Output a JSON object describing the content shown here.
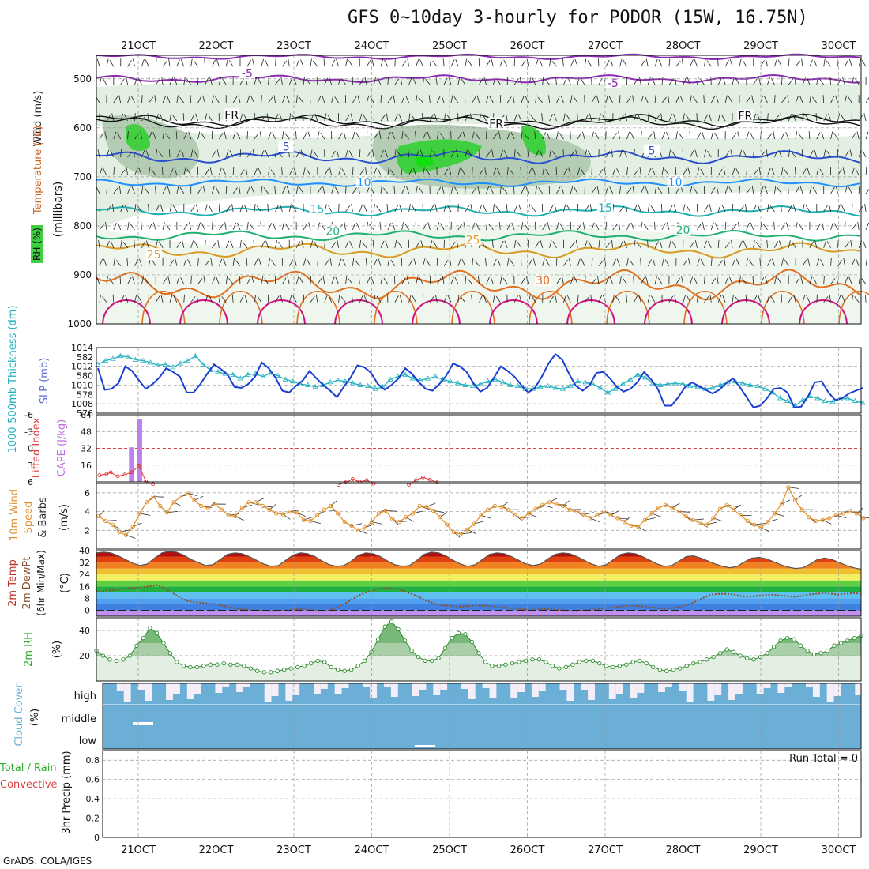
{
  "title": "GFS 0~10day 3-hourly for PODOR (15W, 16.75N)",
  "credit": "GrADS: COLA/IGES",
  "chart_data": [
    {
      "type": "contour",
      "panel": "upper-air",
      "ylabel_parts": [
        {
          "text": "Wind (m/s)",
          "color": "#222222"
        },
        {
          "text": "Temperature (°C)",
          "color": "#d06020"
        },
        {
          "text": "RH (%)",
          "color": "#2fae2f"
        }
      ],
      "ylabel2": "(millibars)",
      "y_ticks": [
        "500",
        "600",
        "700",
        "800",
        "900",
        "1000"
      ],
      "contour_labels": [
        {
          "text": "-5",
          "color": "#8a2bb0",
          "p": 490,
          "d": 1.4
        },
        {
          "text": "-5",
          "color": "#8a2bb0",
          "p": 510,
          "d": 6.1
        },
        {
          "text": "FR",
          "color": "#111111",
          "p": 575,
          "d": 1.2
        },
        {
          "text": "FR",
          "color": "#111111",
          "p": 593,
          "d": 4.6
        },
        {
          "text": "FR",
          "color": "#111111",
          "p": 577,
          "d": 7.8
        },
        {
          "text": "5",
          "color": "#2a4fd0",
          "p": 640,
          "d": 1.9
        },
        {
          "text": "5",
          "color": "#2a4fd0",
          "p": 648,
          "d": 6.6
        },
        {
          "text": "10",
          "color": "#1e90ff",
          "p": 712,
          "d": 2.9
        },
        {
          "text": "10",
          "color": "#1e90ff",
          "p": 712,
          "d": 6.9
        },
        {
          "text": "15",
          "color": "#20b0b0",
          "p": 767,
          "d": 2.3
        },
        {
          "text": "15",
          "color": "#20b0b0",
          "p": 765,
          "d": 6.0
        },
        {
          "text": "20",
          "color": "#20b070",
          "p": 812,
          "d": 2.5
        },
        {
          "text": "20",
          "color": "#20b070",
          "p": 810,
          "d": 7.0
        },
        {
          "text": "25",
          "color": "#d89a20",
          "p": 860,
          "d": 0.2
        },
        {
          "text": "25",
          "color": "#d89a20",
          "p": 830,
          "d": 4.3
        },
        {
          "text": "30",
          "color": "#e07020",
          "p": 913,
          "d": 5.2
        }
      ]
    },
    {
      "type": "line",
      "panel": "thickness-slp",
      "ylabel_left": "1000-500mb Thickness (dm)",
      "ylabel_right": "SLP (mb)",
      "y_ticks": [
        "582",
        "580",
        "578",
        "576"
      ],
      "y2_ticks": [
        "1014",
        "1012",
        "1010",
        "1008"
      ],
      "ylim": [
        576,
        583
      ],
      "y2lim": [
        1007,
        1014
      ],
      "series": [
        {
          "name": "1000-500mb Thickness",
          "color": "#20b0c0",
          "values": [
            581.2,
            581.6,
            581.8,
            582.1,
            582.0,
            581.7,
            581.6,
            581.4,
            581.1,
            581.2,
            580.9,
            581.3,
            581.6,
            582.1,
            581.2,
            580.6,
            580.4,
            580.2,
            580.1,
            579.7,
            580.1,
            580.2,
            579.9,
            580.3,
            580.0,
            579.6,
            579.4,
            579.1,
            579.0,
            578.8,
            579.0,
            579.3,
            579.5,
            579.4,
            579.2,
            579.0,
            578.9,
            578.6,
            578.8,
            579.6,
            579.9,
            580.1,
            579.7,
            579.5,
            579.7,
            579.9,
            579.6,
            579.4,
            579.2,
            579.0,
            578.9,
            579.1,
            579.4,
            579.6,
            579.3,
            579.0,
            578.9,
            578.6,
            578.6,
            578.8,
            578.9,
            578.7,
            578.6,
            578.9,
            579.4,
            579.3,
            579.1,
            578.7,
            578.2,
            578.6,
            579.1,
            579.6,
            580.1,
            579.8,
            579.2,
            579.0,
            579.1,
            579.2,
            579.1,
            578.9,
            578.8,
            578.6,
            578.7,
            579.0,
            579.3,
            579.4,
            579.2,
            579.0,
            578.9,
            578.6,
            578.2,
            577.6,
            577.3,
            576.8,
            577.4,
            577.8,
            577.6,
            577.3,
            577.2,
            577.5,
            577.6,
            577.3,
            577.1
          ]
        },
        {
          "name": "SLP",
          "color": "#1a3fd0",
          "values": [
            1011.8,
            1009.5,
            1009.6,
            1010.2,
            1012.0,
            1011.5,
            1010.5,
            1009.6,
            1010.1,
            1010.8,
            1011.8,
            1011.4,
            1010.9,
            1009.2,
            1009.2,
            1010.1,
            1011.2,
            1012.2,
            1011.7,
            1011.1,
            1009.8,
            1009.7,
            1010.1,
            1010.9,
            1012.4,
            1011.8,
            1010.8,
            1009.4,
            1009.2,
            1009.9,
            1010.5,
            1011.5,
            1010.7,
            1010.0,
            1009.4,
            1008.7,
            1009.8,
            1010.8,
            1012.1,
            1011.9,
            1011.3,
            1010.1,
            1009.5,
            1010.0,
            1010.7,
            1011.8,
            1011.2,
            1010.3,
            1009.6,
            1009.4,
            1010.1,
            1011.0,
            1012.3,
            1012.0,
            1011.4,
            1010.2,
            1009.3,
            1009.7,
            1010.8,
            1012.0,
            1011.5,
            1010.9,
            1010.0,
            1009.2,
            1009.7,
            1010.9,
            1012.3,
            1013.3,
            1012.7,
            1011.2,
            1009.9,
            1009.4,
            1010.0,
            1011.3,
            1011.4,
            1010.7,
            1009.8,
            1009.3,
            1009.6,
            1010.3,
            1011.4,
            1010.6,
            1009.6,
            1007.8,
            1007.8,
            1008.7,
            1009.8,
            1010.3,
            1009.9,
            1009.5,
            1009.1,
            1009.5,
            1010.2,
            1010.7,
            1009.8,
            1008.7,
            1007.6,
            1007.8,
            1008.6,
            1009.6,
            1009.7,
            1009.2,
            1007.6,
            1007.7,
            1008.8,
            1010.3,
            1010.4,
            1009.2,
            1008.4,
            1008.6,
            1009.1,
            1009.4,
            1009.7
          ]
        }
      ]
    },
    {
      "type": "bar+line",
      "panel": "instability",
      "ylabel_left": "Lifted Index",
      "ylabel_right": "CAPE (J/kg)",
      "y_ticks": [
        "-6",
        "-3",
        "0",
        "3",
        "6"
      ],
      "y2_ticks": [
        "64",
        "48",
        "32",
        "16"
      ],
      "y2lim": [
        0,
        64
      ],
      "cape_bars": [
        {
          "x": 4.3,
          "value": 33
        },
        {
          "x": 5.5,
          "value": 60
        }
      ],
      "lifted_index_segments": [
        [
          [
            0,
            4.8
          ],
          [
            1,
            4.6
          ],
          [
            1.6,
            4.3
          ],
          [
            2.6,
            5.0
          ],
          [
            3.6,
            4.7
          ],
          [
            4.6,
            4.3
          ],
          [
            5.6,
            3.1
          ],
          [
            6.6,
            5.9
          ],
          [
            7.6,
            6.4
          ]
        ],
        [
          [
            34,
            6.5
          ],
          [
            35,
            6.1
          ],
          [
            36,
            5.5
          ],
          [
            37,
            6.0
          ],
          [
            38,
            5.7
          ],
          [
            39,
            6.3
          ]
        ],
        [
          [
            44,
            6.5
          ],
          [
            45,
            5.7
          ],
          [
            46,
            5.2
          ],
          [
            47,
            5.6
          ],
          [
            48,
            6.1
          ]
        ]
      ]
    },
    {
      "type": "line",
      "panel": "wind10m",
      "ylabel": "10m Wind Speed & Barbs (m/s)",
      "y_ticks": [
        "6",
        "4",
        "2"
      ],
      "ylim": [
        0,
        7
      ],
      "series": [
        {
          "name": "10m Wind Speed",
          "color": "#e0902a",
          "values": [
            3.5,
            3.0,
            2.6,
            1.8,
            1.5,
            2.4,
            3.8,
            5.0,
            5.6,
            4.6,
            3.9,
            5.0,
            5.6,
            6.0,
            5.2,
            4.6,
            4.4,
            4.8,
            4.2,
            3.6,
            3.5,
            4.4,
            5.0,
            5.0,
            4.6,
            4.2,
            3.8,
            3.7,
            4.0,
            3.9,
            3.1,
            3.0,
            3.6,
            4.2,
            4.6,
            3.8,
            2.9,
            2.5,
            2.0,
            2.3,
            2.9,
            3.8,
            4.1,
            3.2,
            2.9,
            3.4,
            3.8,
            4.6,
            4.5,
            4.1,
            3.4,
            2.6,
            1.8,
            1.6,
            2.1,
            2.7,
            3.6,
            4.2,
            4.6,
            4.5,
            4.2,
            3.6,
            3.3,
            3.8,
            4.3,
            4.7,
            5.0,
            4.8,
            4.6,
            4.2,
            4.0,
            3.7,
            3.3,
            3.6,
            4.0,
            3.6,
            3.3,
            2.9,
            2.5,
            2.4,
            3.1,
            3.8,
            4.4,
            4.7,
            4.4,
            4.0,
            3.5,
            3.1,
            2.8,
            2.6,
            3.3,
            4.3,
            4.7,
            4.2,
            3.6,
            3.0,
            2.6,
            2.3,
            2.9,
            3.8,
            4.8,
            6.6,
            5.2,
            4.2,
            3.4,
            3.0,
            3.1,
            3.3,
            3.6,
            3.8,
            4.0,
            3.8,
            3.3
          ]
        }
      ]
    },
    {
      "type": "area+line",
      "panel": "temperature",
      "ylabel": "2m Temp 2m DewPt (6hr Min/Max) (°C)",
      "y_ticks": [
        "40",
        "32",
        "24",
        "16",
        "8",
        "0"
      ],
      "ylim": [
        -4,
        40
      ],
      "series": [
        {
          "name": "2m Temp",
          "color": "#555555",
          "values": [
            38.5,
            39.0,
            38.5,
            36.5,
            34.0,
            31.5,
            30.0,
            31.0,
            35.0,
            38.5,
            39.5,
            39.0,
            37.0,
            34.0,
            32.0,
            30.0,
            30.5,
            34.0,
            37.5,
            38.5,
            38.0,
            36.0,
            33.5,
            31.0,
            29.5,
            30.0,
            33.5,
            37.0,
            38.5,
            38.0,
            36.0,
            33.0,
            30.5,
            29.5,
            30.0,
            33.0,
            37.0,
            38.5,
            38.0,
            36.0,
            33.0,
            30.5,
            29.5,
            30.0,
            33.5,
            37.5,
            39.0,
            38.5,
            36.5,
            33.5,
            31.0,
            29.5,
            30.5,
            34.0,
            37.5,
            38.5,
            38.0,
            36.0,
            33.5,
            31.0,
            30.0,
            31.0,
            34.5,
            37.5,
            38.5,
            38.0,
            36.0,
            33.5,
            31.0,
            29.5,
            30.5,
            34.0,
            37.5,
            38.5,
            38.0,
            36.0,
            33.5,
            31.0,
            29.5,
            30.0,
            33.0,
            36.0,
            36.5,
            35.0,
            33.0,
            31.0,
            29.5,
            28.5,
            29.5,
            32.5,
            35.0,
            35.5,
            34.5,
            32.5,
            30.5,
            29.0,
            28.0,
            28.5,
            31.0,
            34.0,
            35.0,
            34.0,
            32.0,
            30.0,
            28.5,
            27.5
          ]
        },
        {
          "name": "2m DewPt",
          "color": "#8a5030",
          "values": [
            12.5,
            13.0,
            13.5,
            14.0,
            14.5,
            15.0,
            15.5,
            16.0,
            17.0,
            15.0,
            12.0,
            9.0,
            6.5,
            5.5,
            5.0,
            4.5,
            4.0,
            3.0,
            2.0,
            1.0,
            0.5,
            0.0,
            -0.3,
            -0.5,
            -0.5,
            -0.2,
            0.5,
            1.0,
            0.5,
            0.0,
            -0.5,
            0.0,
            2.0,
            4.0,
            7.0,
            10.0,
            12.0,
            13.5,
            14.5,
            15.0,
            14.5,
            13.0,
            11.0,
            9.0,
            6.5,
            4.5,
            3.5,
            3.0,
            2.5,
            2.5,
            3.0,
            3.2,
            3.0,
            2.5,
            2.0,
            1.5,
            1.0,
            0.5,
            0.5,
            1.0,
            1.0,
            0.5,
            0.0,
            -0.5,
            -0.5,
            0.0,
            0.5,
            1.0,
            1.5,
            2.0,
            2.5,
            3.0,
            3.0,
            2.5,
            2.0,
            1.5,
            1.0,
            1.5,
            2.5,
            4.0,
            6.0,
            8.5,
            10.5,
            11.0,
            11.0,
            10.5,
            9.5,
            9.0,
            9.5,
            10.0,
            10.5,
            10.0,
            9.5,
            9.0,
            9.5,
            10.5,
            11.0,
            11.5,
            11.0,
            10.5,
            11.0,
            11.5,
            11.0
          ]
        }
      ]
    },
    {
      "type": "area+line",
      "panel": "rh2m",
      "ylabel": "2m RH (%)",
      "y_ticks": [
        "40",
        "20"
      ],
      "ylim": [
        0,
        50
      ],
      "series": [
        {
          "name": "2m RH",
          "color": "#2e8b2e",
          "values": [
            24,
            20,
            17,
            16,
            17,
            20,
            28,
            34,
            42,
            38,
            30,
            22,
            15,
            12,
            11,
            11,
            12,
            13,
            13,
            14,
            13,
            13,
            12,
            10,
            8,
            7,
            7,
            8,
            9,
            10,
            11,
            12,
            14,
            16,
            15,
            11,
            9,
            8,
            9,
            12,
            16,
            23,
            33,
            43,
            47,
            41,
            32,
            24,
            19,
            16,
            16,
            18,
            26,
            34,
            38,
            37,
            31,
            22,
            15,
            12,
            12,
            13,
            14,
            15,
            16,
            17,
            17,
            15,
            12,
            10,
            11,
            13,
            15,
            16,
            16,
            14,
            12,
            11,
            12,
            13,
            15,
            16,
            14,
            11,
            9,
            8,
            9,
            10,
            12,
            14,
            15,
            17,
            19,
            22,
            25,
            23,
            20,
            18,
            17,
            19,
            22,
            27,
            32,
            34,
            33,
            28,
            24,
            21,
            22,
            24,
            28,
            30,
            32,
            34,
            36
          ]
        }
      ]
    },
    {
      "type": "area",
      "panel": "cloud-cover",
      "ylabel": "Cloud Cover (%)",
      "levels": [
        "high",
        "middle",
        "low"
      ]
    },
    {
      "type": "bar",
      "panel": "precip",
      "ylabel": "3hr Precip (mm)",
      "side_labels": [
        "Total / Rain",
        "Convective"
      ],
      "y_ticks": [
        "0.8",
        "0.6",
        "0.4",
        "0.2",
        "0"
      ],
      "ylim": [
        0,
        0.9
      ],
      "annotation": "Run Total = 0",
      "values": []
    }
  ],
  "x_axis": {
    "top_ticks": [
      "21OCT",
      "22OCT",
      "23OCT",
      "24OCT",
      "25OCT",
      "26OCT",
      "27OCT",
      "28OCT",
      "29OCT",
      "30OCT"
    ],
    "bottom_ticks": [
      "21OCT",
      "22OCT",
      "23OCT",
      "24OCT",
      "25OCT",
      "26OCT",
      "27OCT",
      "28OCT",
      "29OCT",
      "30OCT"
    ]
  },
  "colors": {
    "frame": "#111111",
    "grid": "#999999",
    "rh_light": "#e2efe2",
    "rh_mid": "#b4ccb4",
    "rh_green": "#3fd03f",
    "cloud": "#6baed6",
    "cloud_clear": "#f3eef8"
  }
}
